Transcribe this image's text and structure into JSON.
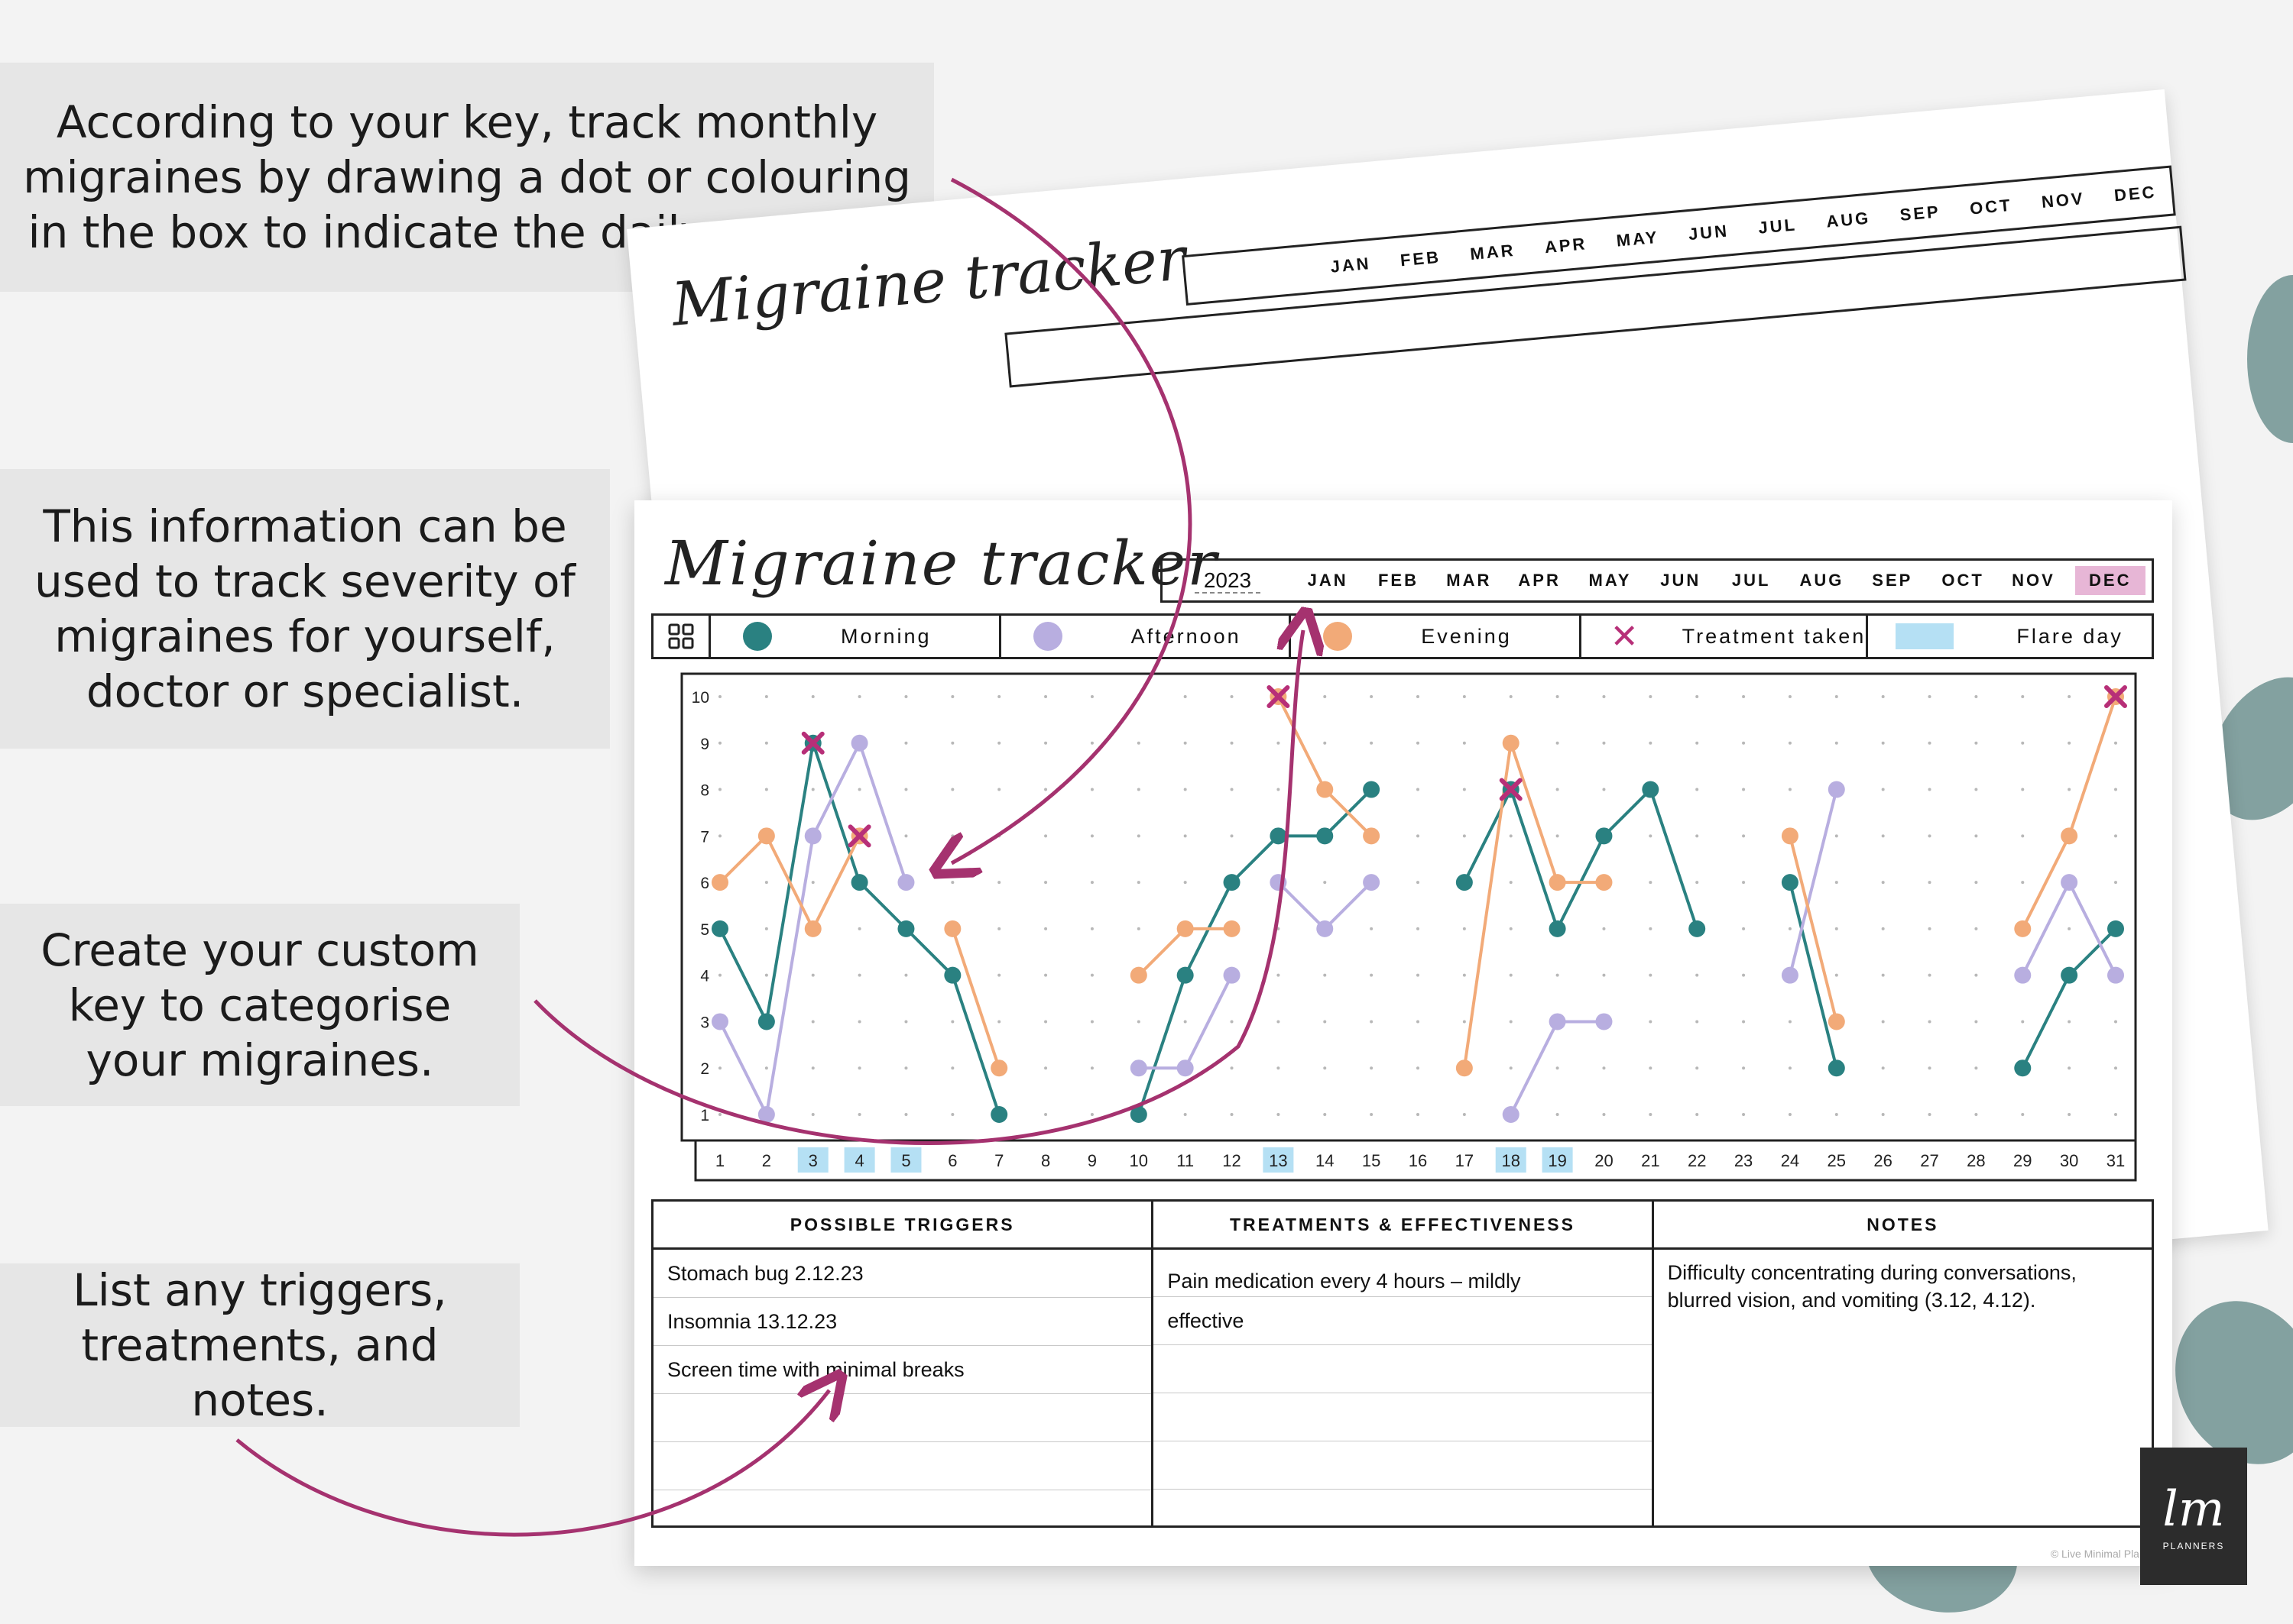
{
  "callouts": [
    "According to your key, track monthly migraines by drawing a dot or colouring in the box to indicate the daily severity.",
    "This information can be used to track severity of migraines for yourself, doctor or specialist.",
    "Create your custom key to categorise your migraines.",
    "List any triggers, treatments, and notes."
  ],
  "back_sheet": {
    "title": "Migraine tracker",
    "months": [
      "JAN",
      "FEB",
      "MAR",
      "APR",
      "MAY",
      "JUN",
      "JUL",
      "AUG",
      "SEP",
      "OCT",
      "NOV",
      "DEC"
    ]
  },
  "sheet": {
    "title": "Migraine tracker",
    "year": "2023",
    "months": [
      "JAN",
      "FEB",
      "MAR",
      "APR",
      "MAY",
      "JUN",
      "JUL",
      "AUG",
      "SEP",
      "OCT",
      "NOV",
      "DEC"
    ],
    "selected_month": "DEC",
    "key": {
      "morning": "Morning",
      "afternoon": "Afternoon",
      "evening": "Evening",
      "treatment": "Treatment taken",
      "flare": "Flare day"
    },
    "tables": {
      "triggers": {
        "header": "POSSIBLE TRIGGERS",
        "lines": [
          "Stomach bug 2.12.23",
          "Insomnia 13.12.23",
          "Screen time with minimal breaks"
        ]
      },
      "treatments": {
        "header": "TREATMENTS & EFFECTIVENESS",
        "lines": [
          "Pain medication every 4 hours – mildly",
          "effective"
        ]
      },
      "notes": {
        "header": "NOTES",
        "text": "Difficulty concentrating during conversations, blurred vision, and vomiting (3.12, 4.12)."
      }
    },
    "credit": "© Live Minimal Planners"
  },
  "logo_word": "PLANNERS",
  "colors": {
    "morning": "#2a8181",
    "afternoon": "#b8aee0",
    "evening": "#f2aa78",
    "treatment": "#b72f78",
    "flare": "#b5e0f4",
    "arrow": "#a5326f"
  },
  "chart_data": {
    "type": "line",
    "xlabel": "",
    "ylabel": "",
    "x": [
      1,
      2,
      3,
      4,
      5,
      6,
      7,
      8,
      9,
      10,
      11,
      12,
      13,
      14,
      15,
      16,
      17,
      18,
      19,
      20,
      21,
      22,
      23,
      24,
      25,
      26,
      27,
      28,
      29,
      30,
      31
    ],
    "ylim": [
      1,
      10
    ],
    "yticks": [
      1,
      2,
      3,
      4,
      5,
      6,
      7,
      8,
      9,
      10
    ],
    "flare_days": [
      3,
      4,
      5,
      13,
      18,
      19
    ],
    "series": [
      {
        "name": "Morning",
        "color": "#2a8181",
        "segments": [
          [
            [
              1,
              5
            ],
            [
              2,
              3
            ],
            [
              3,
              9
            ],
            [
              4,
              6
            ],
            [
              5,
              5
            ],
            [
              6,
              4
            ],
            [
              7,
              1
            ]
          ],
          [
            [
              10,
              1
            ],
            [
              11,
              4
            ],
            [
              12,
              6
            ],
            [
              13,
              7
            ],
            [
              14,
              7
            ],
            [
              15,
              8
            ]
          ],
          [
            [
              17,
              6
            ],
            [
              18,
              8
            ],
            [
              19,
              5
            ],
            [
              20,
              7
            ],
            [
              21,
              8
            ],
            [
              22,
              5
            ]
          ],
          [
            [
              24,
              6
            ],
            [
              25,
              2
            ]
          ],
          [
            [
              29,
              2
            ],
            [
              30,
              4
            ],
            [
              31,
              5
            ]
          ]
        ]
      },
      {
        "name": "Afternoon",
        "color": "#b8aee0",
        "segments": [
          [
            [
              1,
              3
            ],
            [
              2,
              1
            ],
            [
              3,
              7
            ],
            [
              4,
              9
            ],
            [
              5,
              6
            ]
          ],
          [
            [
              10,
              2
            ],
            [
              11,
              2
            ],
            [
              12,
              4
            ]
          ],
          [
            [
              13,
              6
            ],
            [
              14,
              5
            ],
            [
              15,
              6
            ]
          ],
          [
            [
              18,
              1
            ],
            [
              19,
              3
            ],
            [
              20,
              3
            ]
          ],
          [
            [
              24,
              4
            ],
            [
              25,
              8
            ]
          ],
          [
            [
              29,
              4
            ],
            [
              30,
              6
            ],
            [
              31,
              4
            ]
          ]
        ]
      },
      {
        "name": "Evening",
        "color": "#f2aa78",
        "segments": [
          [
            [
              1,
              6
            ],
            [
              2,
              7
            ],
            [
              3,
              5
            ],
            [
              4,
              7
            ]
          ],
          [
            [
              6,
              5
            ],
            [
              7,
              2
            ]
          ],
          [
            [
              10,
              4
            ],
            [
              11,
              5
            ],
            [
              12,
              5
            ]
          ],
          [
            [
              13,
              10
            ],
            [
              14,
              8
            ],
            [
              15,
              7
            ]
          ],
          [
            [
              17,
              2
            ],
            [
              18,
              9
            ],
            [
              19,
              6
            ],
            [
              20,
              6
            ]
          ],
          [
            [
              24,
              7
            ],
            [
              25,
              3
            ]
          ],
          [
            [
              29,
              5
            ],
            [
              30,
              7
            ],
            [
              31,
              10
            ]
          ]
        ]
      }
    ],
    "treatments": [
      [
        3,
        9
      ],
      [
        4,
        7
      ],
      [
        13,
        10
      ],
      [
        18,
        8
      ],
      [
        31,
        10
      ]
    ]
  }
}
